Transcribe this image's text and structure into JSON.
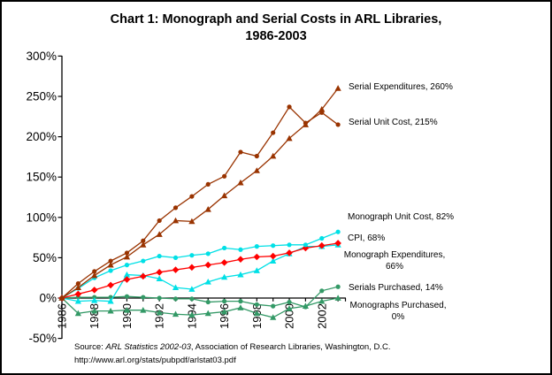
{
  "title": {
    "line1": "Chart 1: Monograph and Serial Costs in ARL Libraries,",
    "line2": "1986-2003"
  },
  "source": {
    "prefix": "Source: ",
    "italic": "ARL Statistics 2002-03",
    "rest": ", Association of Research Libraries, Washington, D.C.",
    "url": "http://www.arl.org/stats/pubpdf/arlstat03.pdf"
  },
  "chart_data": {
    "type": "line",
    "title": "Chart 1: Monograph and Serial Costs in ARL Libraries, 1986-2003",
    "xlabel": "",
    "ylabel": "",
    "grid": false,
    "legend_position": "end-of-line-labels",
    "ylim": [
      -50,
      300
    ],
    "y_tick_format": "percent",
    "y_ticks": [
      {
        "label": "300%",
        "value": 300
      },
      {
        "label": "250%",
        "value": 250
      },
      {
        "label": "200%",
        "value": 200
      },
      {
        "label": "150%",
        "value": 150
      },
      {
        "label": "100%",
        "value": 100
      },
      {
        "label": "50%",
        "value": 50
      },
      {
        "label": "0%",
        "value": 0
      },
      {
        "label": "-50%",
        "value": -50
      }
    ],
    "x": [
      1986,
      1987,
      1988,
      1989,
      1990,
      1991,
      1992,
      1993,
      1994,
      1995,
      1996,
      1997,
      1998,
      1999,
      2000,
      2001,
      2002,
      2003
    ],
    "x_tick_labels": [
      "1986",
      "1988",
      "1990",
      "1992",
      "1994",
      "1996",
      "1998",
      "2000",
      "2002"
    ],
    "series": [
      {
        "name": "Serial Expenditures",
        "label_lines": [
          "Serial Expenditures, 260%"
        ],
        "final_value": 260,
        "color": "#993300",
        "marker": "triangle",
        "values": [
          0,
          13,
          28,
          41,
          51,
          66,
          79,
          96,
          95,
          110,
          127,
          143,
          158,
          176,
          198,
          215,
          234,
          260
        ]
      },
      {
        "name": "Serial Unit Cost",
        "label_lines": [
          "Serial Unit Cost, 215%"
        ],
        "final_value": 215,
        "color": "#993300",
        "marker": "circle",
        "values": [
          0,
          18,
          33,
          46,
          56,
          71,
          96,
          112,
          126,
          141,
          151,
          181,
          176,
          205,
          237,
          217,
          230,
          215
        ]
      },
      {
        "name": "Monograph Unit Cost",
        "label_lines": [
          "Monograph Unit Cost, 82%"
        ],
        "final_value": 82,
        "color": "#00E0E6",
        "marker": "circle",
        "values": [
          0,
          12,
          25,
          34,
          41,
          46,
          52,
          50,
          53,
          55,
          62,
          60,
          64,
          65,
          66,
          66,
          74,
          82
        ]
      },
      {
        "name": "CPI",
        "label_lines": [
          "CPI, 68%"
        ],
        "final_value": 68,
        "color": "#FF0000",
        "marker": "diamond",
        "values": [
          0,
          5,
          10,
          16,
          23,
          27,
          32,
          35,
          38,
          41,
          44,
          48,
          51,
          52,
          56,
          62,
          65,
          68
        ]
      },
      {
        "name": "Monograph Expenditures",
        "label_lines": [
          "Monograph Expenditures,",
          "66%"
        ],
        "final_value": 66,
        "color": "#00E0E6",
        "marker": "triangle",
        "values": [
          0,
          -4,
          -3,
          -4,
          29,
          28,
          24,
          13,
          11,
          20,
          26,
          29,
          34,
          46,
          55,
          64,
          64,
          66
        ]
      },
      {
        "name": "Serials Purchased",
        "label_lines": [
          "Serials Purchased, 14%"
        ],
        "final_value": 14,
        "color": "#339966",
        "marker": "circle",
        "values": [
          0,
          1,
          1,
          1,
          2,
          1,
          0,
          -1,
          -1,
          -5,
          -4,
          -4,
          -8,
          -10,
          -5,
          -11,
          9,
          14
        ]
      },
      {
        "name": "Monographs Purchased",
        "label_lines": [
          "Monographs Purchased,",
          "0%"
        ],
        "final_value": 0,
        "color": "#339966",
        "marker": "triangle",
        "values": [
          0,
          -19,
          -16,
          -16,
          -15,
          -15,
          -18,
          -20,
          -21,
          -19,
          -17,
          -12,
          -19,
          -24,
          -13,
          -10,
          -4,
          0
        ]
      }
    ]
  }
}
